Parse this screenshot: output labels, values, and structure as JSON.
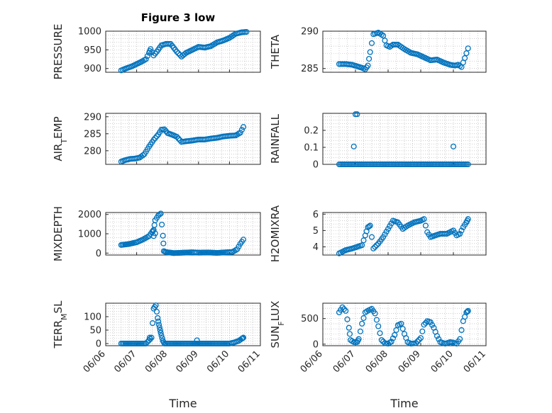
{
  "figure": {
    "title": "Figure 3 low"
  },
  "style": {
    "marker_color": "#0072BD",
    "axis_color": "#262626",
    "grid_color": "#b0b0b0",
    "background": "#ffffff"
  },
  "chart_data": [
    {
      "id": "pressure",
      "type": "scatter",
      "marker": "circle",
      "ylabel": "PRESSURE",
      "ylabel_sub": "",
      "ylim": [
        890,
        1000
      ],
      "yticks": [
        900,
        950,
        1000
      ],
      "xlim": [
        0,
        5
      ],
      "show_xticklabels": false,
      "grid": true,
      "minor_grid": true,
      "curve": [
        [
          0.5,
          895
        ],
        [
          0.65,
          900
        ],
        [
          0.85,
          906
        ],
        [
          1.0,
          912
        ],
        [
          1.15,
          918
        ],
        [
          1.3,
          925
        ],
        [
          1.4,
          942
        ],
        [
          1.45,
          952
        ],
        [
          1.55,
          935
        ],
        [
          1.65,
          945
        ],
        [
          1.8,
          962
        ],
        [
          1.95,
          966
        ],
        [
          2.1,
          966
        ],
        [
          2.3,
          945
        ],
        [
          2.45,
          932
        ],
        [
          2.6,
          942
        ],
        [
          2.8,
          950
        ],
        [
          3.0,
          958
        ],
        [
          3.2,
          956
        ],
        [
          3.4,
          960
        ],
        [
          3.6,
          970
        ],
        [
          3.8,
          975
        ],
        [
          4.0,
          982
        ],
        [
          4.2,
          993
        ],
        [
          4.4,
          997
        ],
        [
          4.55,
          998
        ]
      ],
      "extra_points": []
    },
    {
      "id": "theta",
      "type": "scatter",
      "marker": "circle",
      "ylabel": "THETA",
      "ylabel_sub": "",
      "ylim": [
        284.5,
        290
      ],
      "yticks": [
        285,
        290
      ],
      "xlim": [
        0,
        5
      ],
      "show_xticklabels": false,
      "grid": true,
      "minor_grid": true,
      "curve": [
        [
          0.5,
          285.6
        ],
        [
          0.7,
          285.6
        ],
        [
          0.9,
          285.5
        ],
        [
          1.05,
          285.3
        ],
        [
          1.2,
          285.1
        ],
        [
          1.3,
          284.9
        ],
        [
          1.38,
          285.4
        ],
        [
          1.45,
          287.2
        ],
        [
          1.55,
          289.6
        ],
        [
          1.7,
          289.8
        ],
        [
          1.85,
          289.4
        ],
        [
          1.95,
          288.1
        ],
        [
          2.05,
          287.9
        ],
        [
          2.15,
          288.2
        ],
        [
          2.3,
          288.2
        ],
        [
          2.5,
          287.6
        ],
        [
          2.7,
          287.1
        ],
        [
          2.9,
          286.9
        ],
        [
          3.1,
          286.5
        ],
        [
          3.3,
          286.1
        ],
        [
          3.5,
          286.2
        ],
        [
          3.7,
          285.8
        ],
        [
          3.9,
          285.5
        ],
        [
          4.05,
          285.4
        ],
        [
          4.15,
          285.5
        ],
        [
          4.25,
          285.2
        ],
        [
          4.35,
          286.4
        ],
        [
          4.45,
          287.7
        ]
      ],
      "extra_points": []
    },
    {
      "id": "air_temp",
      "type": "scatter",
      "marker": "circle",
      "ylabel": "AIR",
      "ylabel_sub": "T",
      "ylabel_suffix": "EMP",
      "ylim": [
        276,
        291
      ],
      "yticks": [
        280,
        285,
        290
      ],
      "xlim": [
        0,
        5
      ],
      "show_xticklabels": false,
      "grid": true,
      "minor_grid": true,
      "curve": [
        [
          0.5,
          276.8
        ],
        [
          0.65,
          277.3
        ],
        [
          0.8,
          277.6
        ],
        [
          0.95,
          277.7
        ],
        [
          1.1,
          278.0
        ],
        [
          1.25,
          279.0
        ],
        [
          1.4,
          281.2
        ],
        [
          1.55,
          283.2
        ],
        [
          1.7,
          284.8
        ],
        [
          1.8,
          286.2
        ],
        [
          1.9,
          286.3
        ],
        [
          2.0,
          285.2
        ],
        [
          2.15,
          284.7
        ],
        [
          2.3,
          284.1
        ],
        [
          2.45,
          282.6
        ],
        [
          2.6,
          282.8
        ],
        [
          2.8,
          283.0
        ],
        [
          3.0,
          283.3
        ],
        [
          3.2,
          283.3
        ],
        [
          3.4,
          283.6
        ],
        [
          3.6,
          283.8
        ],
        [
          3.8,
          284.2
        ],
        [
          4.0,
          284.4
        ],
        [
          4.2,
          284.5
        ],
        [
          4.35,
          285.3
        ],
        [
          4.45,
          287.0
        ]
      ],
      "extra_points": []
    },
    {
      "id": "rainfall",
      "type": "scatter",
      "marker": "circle",
      "ylabel": "RAINFALL",
      "ylabel_sub": "",
      "ylim": [
        0,
        0.3
      ],
      "yticks": [
        0,
        0.1,
        0.2
      ],
      "ytick_labels": [
        "0",
        "0.1",
        "0.2"
      ],
      "xlim": [
        0,
        5
      ],
      "show_xticklabels": false,
      "grid": true,
      "minor_grid": true,
      "curve": [
        [
          0.5,
          0
        ],
        [
          4.45,
          0
        ]
      ],
      "extra_points": [
        [
          0.95,
          0.105
        ],
        [
          1.0,
          0.295
        ],
        [
          1.05,
          0.295
        ],
        [
          4.0,
          0.105
        ]
      ]
    },
    {
      "id": "mixdepth",
      "type": "scatter",
      "marker": "circle",
      "ylabel": "MIXDEPTH",
      "ylabel_sub": "",
      "ylim": [
        -100,
        2100
      ],
      "yticks": [
        0,
        1000,
        2000
      ],
      "xlim": [
        0,
        5
      ],
      "show_xticklabels": false,
      "grid": true,
      "minor_grid": true,
      "curve": [
        [
          0.5,
          420
        ],
        [
          0.75,
          470
        ],
        [
          1.0,
          560
        ],
        [
          1.2,
          700
        ],
        [
          1.4,
          880
        ],
        [
          1.5,
          1100
        ],
        [
          1.55,
          1200
        ],
        [
          1.6,
          1700
        ],
        [
          1.7,
          1950
        ],
        [
          1.78,
          2050
        ],
        [
          1.85,
          900
        ],
        [
          1.88,
          100
        ],
        [
          1.95,
          50
        ],
        [
          2.2,
          0
        ],
        [
          2.5,
          20
        ],
        [
          2.8,
          40
        ],
        [
          3.0,
          20
        ],
        [
          3.3,
          30
        ],
        [
          3.6,
          10
        ],
        [
          3.9,
          40
        ],
        [
          4.1,
          60
        ],
        [
          4.25,
          200
        ],
        [
          4.35,
          480
        ],
        [
          4.45,
          700
        ]
      ],
      "extra_points": [
        [
          1.55,
          880
        ],
        [
          1.6,
          1020
        ]
      ]
    },
    {
      "id": "h2omixra",
      "type": "scatter",
      "marker": "circle",
      "ylabel": "H2OMIXRA",
      "ylabel_sub": "",
      "ylim": [
        3.5,
        6.1
      ],
      "yticks": [
        4,
        5,
        6
      ],
      "xlim": [
        0,
        5
      ],
      "show_xticklabels": false,
      "grid": true,
      "minor_grid": true,
      "curve": [
        [
          0.5,
          3.6
        ],
        [
          0.7,
          3.8
        ],
        [
          0.9,
          3.9
        ],
        [
          1.05,
          4.0
        ],
        [
          1.2,
          4.1
        ],
        [
          1.3,
          4.7
        ],
        [
          1.38,
          5.2
        ],
        [
          1.45,
          5.3
        ],
        [
          1.55,
          3.9
        ],
        [
          1.7,
          4.2
        ],
        [
          1.85,
          4.6
        ],
        [
          2.0,
          5.1
        ],
        [
          2.15,
          5.6
        ],
        [
          2.3,
          5.5
        ],
        [
          2.45,
          5.1
        ],
        [
          2.6,
          5.3
        ],
        [
          2.8,
          5.5
        ],
        [
          3.0,
          5.6
        ],
        [
          3.1,
          5.7
        ],
        [
          3.2,
          4.9
        ],
        [
          3.3,
          4.6
        ],
        [
          3.45,
          4.7
        ],
        [
          3.6,
          4.8
        ],
        [
          3.8,
          4.8
        ],
        [
          4.0,
          5.0
        ],
        [
          4.1,
          4.7
        ],
        [
          4.2,
          4.8
        ],
        [
          4.3,
          5.2
        ],
        [
          4.4,
          5.5
        ],
        [
          4.45,
          5.7
        ]
      ],
      "extra_points": []
    },
    {
      "id": "terr_msl",
      "type": "scatter",
      "marker": "circle",
      "ylabel": "TERR",
      "ylabel_sub": "M",
      "ylabel_suffix": "SL",
      "ylim": [
        -8,
        150
      ],
      "yticks": [
        0,
        50,
        100
      ],
      "xlim": [
        0,
        5
      ],
      "xticks": [
        0,
        1,
        2,
        3,
        4,
        5
      ],
      "xtick_labels": [
        "06/06",
        "06/07",
        "06/08",
        "06/09",
        "06/10",
        "06/11"
      ],
      "show_xticklabels": true,
      "xlabel": "Time",
      "grid": true,
      "minor_grid": true,
      "curve": [
        [
          0.5,
          0
        ],
        [
          1.3,
          0
        ],
        [
          1.4,
          12
        ],
        [
          1.48,
          22
        ],
        [
          1.55,
          130
        ],
        [
          1.62,
          142
        ],
        [
          1.68,
          95
        ],
        [
          1.72,
          70
        ],
        [
          1.76,
          50
        ],
        [
          1.8,
          30
        ],
        [
          1.85,
          10
        ],
        [
          1.9,
          0
        ],
        [
          2.8,
          0
        ],
        [
          3.1,
          0
        ],
        [
          4.0,
          0
        ],
        [
          4.15,
          4
        ],
        [
          4.3,
          10
        ],
        [
          4.4,
          18
        ],
        [
          4.45,
          22
        ]
      ],
      "extra_points": [
        [
          1.42,
          22
        ],
        [
          2.95,
          12
        ]
      ]
    },
    {
      "id": "sun_flux",
      "type": "scatter",
      "marker": "circle",
      "ylabel": "SUN",
      "ylabel_sub": "F",
      "ylabel_suffix": "LUX",
      "ylim": [
        -30,
        800
      ],
      "yticks": [
        0,
        500
      ],
      "xlim": [
        0,
        5
      ],
      "xticks": [
        0,
        1,
        2,
        3,
        4,
        5
      ],
      "xtick_labels": [
        "06/06",
        "06/07",
        "06/08",
        "06/09",
        "06/10",
        "06/11"
      ],
      "show_xticklabels": true,
      "xlabel": "Time",
      "grid": true,
      "minor_grid": true,
      "curve": [
        [
          0.5,
          620
        ],
        [
          0.6,
          720
        ],
        [
          0.7,
          650
        ],
        [
          0.8,
          320
        ],
        [
          0.85,
          80
        ],
        [
          0.95,
          40
        ],
        [
          1.05,
          40
        ],
        [
          1.1,
          100
        ],
        [
          1.2,
          400
        ],
        [
          1.3,
          620
        ],
        [
          1.4,
          660
        ],
        [
          1.5,
          690
        ],
        [
          1.6,
          600
        ],
        [
          1.7,
          350
        ],
        [
          1.8,
          80
        ],
        [
          1.9,
          20
        ],
        [
          2.0,
          10
        ],
        [
          2.1,
          50
        ],
        [
          2.2,
          180
        ],
        [
          2.3,
          370
        ],
        [
          2.4,
          400
        ],
        [
          2.5,
          200
        ],
        [
          2.6,
          40
        ],
        [
          2.7,
          10
        ],
        [
          2.85,
          20
        ],
        [
          3.0,
          120
        ],
        [
          3.1,
          380
        ],
        [
          3.2,
          450
        ],
        [
          3.3,
          430
        ],
        [
          3.4,
          320
        ],
        [
          3.5,
          160
        ],
        [
          3.6,
          40
        ],
        [
          3.75,
          10
        ],
        [
          3.9,
          40
        ],
        [
          4.0,
          30
        ],
        [
          4.1,
          10
        ],
        [
          4.2,
          100
        ],
        [
          4.3,
          450
        ],
        [
          4.4,
          620
        ],
        [
          4.45,
          650
        ]
      ],
      "extra_points": []
    }
  ]
}
